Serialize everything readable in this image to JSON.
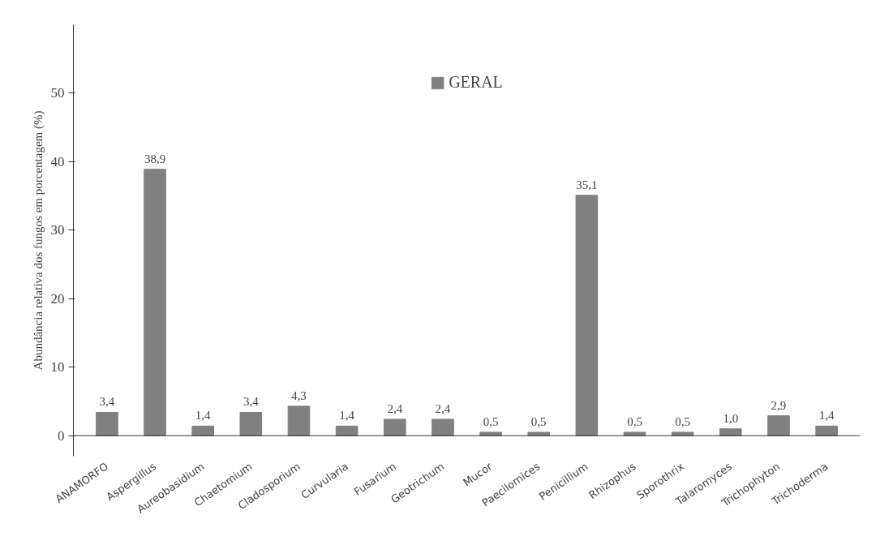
{
  "chart_data": {
    "type": "bar",
    "ylabel": "Abundância relativa dos fungos em porcentagem (%)",
    "categories": [
      "ANAMORFO",
      "Aspergillus",
      "Aureobasidium",
      "Chaetomium",
      "Cladosporium",
      "Curvularia",
      "Fusarium",
      "Geotrichum",
      "Mucor",
      "Paecilomices",
      "Penicillium",
      "Rhizophus",
      "Sporothrix",
      "Talaromyces",
      "Trichophyton",
      "Trichoderma"
    ],
    "series": [
      {
        "name": "GERAL",
        "color": "#808080",
        "values": [
          3.4,
          38.9,
          1.4,
          3.4,
          4.3,
          1.4,
          2.4,
          2.4,
          0.5,
          0.5,
          35.1,
          0.5,
          0.5,
          1.0,
          2.9,
          1.4
        ],
        "value_labels": [
          "3,4",
          "38,9",
          "1,4",
          "3,4",
          "4,3",
          "1,4",
          "2,4",
          "2,4",
          "0,5",
          "0,5",
          "35,1",
          "0,5",
          "0,5",
          "1,0",
          "2,9",
          "1,4"
        ]
      }
    ],
    "ylim": [
      -3,
      60
    ],
    "yticks": [
      0,
      10,
      20,
      30,
      40,
      50
    ],
    "grid": false,
    "legend": "top"
  }
}
